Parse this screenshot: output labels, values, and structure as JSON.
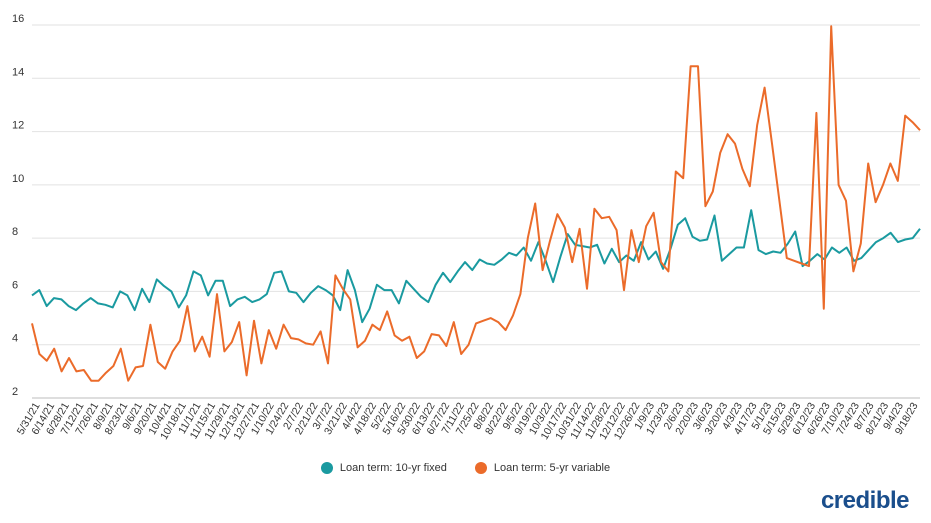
{
  "chart_data": {
    "type": "line",
    "title": "",
    "xlabel": "",
    "ylabel": "",
    "ylim": [
      2,
      16
    ],
    "yticks": [
      2,
      4,
      6,
      8,
      10,
      12,
      14,
      16
    ],
    "grid": true,
    "legend_position": "bottom",
    "x_tick_labels": [
      "5/31/21",
      "6/14/21",
      "6/28/21",
      "7/12/21",
      "7/26/21",
      "8/9/21",
      "8/23/21",
      "9/6/21",
      "9/20/21",
      "10/4/21",
      "10/18/21",
      "11/1/21",
      "11/15/21",
      "11/29/21",
      "12/13/21",
      "12/27/21",
      "1/10/22",
      "1/24/22",
      "2/7/22",
      "2/21/22",
      "3/7/22",
      "3/21/22",
      "4/4/22",
      "4/18/22",
      "5/2/22",
      "5/16/22",
      "5/30/22",
      "6/13/22",
      "6/27/22",
      "7/11/22",
      "7/25/22",
      "8/8/22",
      "8/22/22",
      "9/5/22",
      "9/19/22",
      "10/3/22",
      "10/17/22",
      "10/31/22",
      "11/14/22",
      "11/28/22",
      "12/12/22",
      "12/26/22",
      "1/9/23",
      "1/23/23",
      "2/6/23",
      "2/20/23",
      "3/6/23",
      "3/20/23",
      "4/3/23",
      "4/17/23",
      "5/1/23",
      "5/15/23",
      "5/29/23",
      "6/12/23",
      "6/26/23",
      "7/10/23",
      "7/24/23",
      "8/7/23",
      "8/21/23",
      "9/4/23",
      "9/18/23"
    ],
    "series": [
      {
        "name": "Loan term: 10-yr fixed",
        "color": "#1a9aa0",
        "values": [
          5.85,
          6.05,
          5.45,
          5.75,
          5.7,
          5.45,
          5.3,
          5.55,
          5.75,
          5.55,
          5.5,
          5.4,
          6.0,
          5.85,
          5.3,
          6.1,
          5.6,
          6.45,
          6.2,
          6.0,
          5.4,
          5.85,
          6.75,
          6.6,
          5.85,
          6.4,
          6.4,
          5.45,
          5.7,
          5.8,
          5.6,
          5.7,
          5.9,
          6.7,
          6.75,
          6.0,
          5.95,
          5.6,
          5.95,
          6.2,
          6.05,
          5.85,
          5.3,
          6.8,
          6.05,
          4.85,
          5.35,
          6.25,
          6.05,
          6.05,
          5.55,
          6.4,
          6.1,
          5.8,
          5.6,
          6.25,
          6.7,
          6.35,
          6.75,
          7.1,
          6.8,
          7.2,
          7.05,
          7.0,
          7.2,
          7.45,
          7.35,
          7.65,
          7.15,
          7.85,
          7.15,
          6.35,
          7.3,
          8.15,
          7.75,
          7.7,
          7.65,
          7.75,
          7.05,
          7.6,
          7.1,
          7.35,
          7.15,
          7.85,
          7.2,
          7.5,
          6.85,
          7.6,
          8.5,
          8.75,
          8.05,
          7.9,
          7.95,
          8.85,
          7.15,
          7.4,
          7.65,
          7.65,
          9.05,
          7.55,
          7.4,
          7.5,
          7.45,
          7.8,
          8.25,
          6.95,
          7.15,
          7.4,
          7.2,
          7.65,
          7.45,
          7.65,
          7.15,
          7.25,
          7.55,
          7.85,
          8.0,
          8.2,
          7.85,
          7.95,
          8.0,
          8.35
        ]
      },
      {
        "name": "Loan term: 5-yr variable",
        "color": "#eb6b2a",
        "values": [
          4.8,
          3.65,
          3.4,
          3.85,
          3.0,
          3.5,
          3.0,
          3.05,
          2.65,
          2.65,
          2.95,
          3.2,
          3.85,
          2.65,
          3.15,
          3.2,
          4.75,
          3.35,
          3.1,
          3.75,
          4.15,
          5.45,
          3.75,
          4.3,
          3.55,
          5.9,
          3.75,
          4.1,
          4.85,
          2.85,
          4.9,
          3.3,
          4.55,
          3.85,
          4.75,
          4.25,
          4.2,
          4.05,
          4.0,
          4.5,
          3.3,
          6.6,
          6.1,
          5.7,
          3.9,
          4.15,
          4.75,
          4.55,
          5.25,
          4.35,
          4.15,
          4.3,
          3.5,
          3.75,
          4.4,
          4.35,
          3.95,
          4.85,
          3.65,
          4.0,
          4.8,
          4.9,
          5.0,
          4.85,
          4.55,
          5.1,
          5.9,
          8.0,
          9.3,
          6.8,
          7.9,
          8.9,
          8.4,
          7.1,
          8.35,
          6.1,
          9.1,
          8.75,
          8.8,
          8.3,
          6.05,
          8.3,
          7.1,
          8.45,
          8.95,
          7.1,
          6.75,
          10.5,
          10.25,
          14.45,
          14.45,
          9.2,
          9.75,
          11.2,
          11.9,
          11.55,
          10.6,
          9.95,
          12.25,
          13.65,
          11.55,
          9.4,
          7.25,
          7.15,
          7.05,
          6.95,
          12.7,
          5.35,
          15.95,
          10.0,
          9.4,
          6.75,
          7.8,
          10.8,
          9.35,
          10.0,
          10.8,
          10.15,
          12.6,
          12.35,
          12.05
        ]
      }
    ]
  },
  "brand": {
    "logo_text": "credible"
  }
}
